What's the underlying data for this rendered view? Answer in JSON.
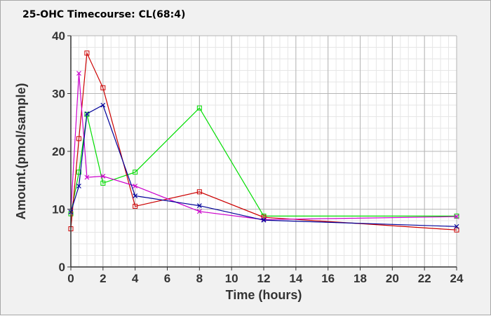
{
  "chart_data": {
    "type": "line",
    "title": "25-OHC Timecourse: CL(68:4)",
    "xlabel": "Time (hours)",
    "ylabel": "Amount.(pmol/sample)",
    "xlim": [
      0,
      24
    ],
    "ylim": [
      0,
      40
    ],
    "xticks": [
      0,
      2,
      4,
      6,
      8,
      10,
      12,
      14,
      16,
      18,
      20,
      22,
      24
    ],
    "yticks": [
      0,
      10,
      20,
      30,
      40
    ],
    "grid": true,
    "minor_grid": true,
    "legend": "none",
    "series": [
      {
        "color": "#00dd00",
        "marker": "square",
        "points": [
          [
            0,
            9.2
          ],
          [
            0.5,
            16.4
          ],
          [
            1,
            26.4
          ],
          [
            2,
            14.5
          ],
          [
            4,
            16.4
          ],
          [
            8,
            27.5
          ],
          [
            12,
            8.8
          ],
          [
            24,
            8.8
          ]
        ]
      },
      {
        "color": "#cc0000",
        "marker": "square",
        "points": [
          [
            0,
            6.6
          ],
          [
            0.5,
            22.2
          ],
          [
            1,
            37.0
          ],
          [
            2,
            31.0
          ],
          [
            4,
            10.5
          ],
          [
            8,
            13.0
          ],
          [
            12,
            8.6
          ],
          [
            24,
            6.4
          ]
        ]
      },
      {
        "color": "#cc00cc",
        "marker": "x",
        "points": [
          [
            0,
            9.5
          ],
          [
            0.5,
            33.5
          ],
          [
            1,
            15.5
          ],
          [
            2,
            15.7
          ],
          [
            4,
            14.0
          ],
          [
            8,
            9.6
          ],
          [
            12,
            8.2
          ],
          [
            24,
            8.7
          ]
        ]
      },
      {
        "color": "#000099",
        "marker": "x",
        "points": [
          [
            0,
            9.5
          ],
          [
            0.5,
            14.0
          ],
          [
            1,
            26.5
          ],
          [
            2,
            28.0
          ],
          [
            4,
            12.3
          ],
          [
            8,
            10.6
          ],
          [
            12,
            8.1
          ],
          [
            24,
            7.0
          ]
        ]
      }
    ]
  },
  "colors": {
    "background": "#f1f1f1",
    "plot_background": "#ffffff",
    "major_grid": "#b5b5b5",
    "minor_grid": "#e6e6e6",
    "axis": "#333333"
  }
}
